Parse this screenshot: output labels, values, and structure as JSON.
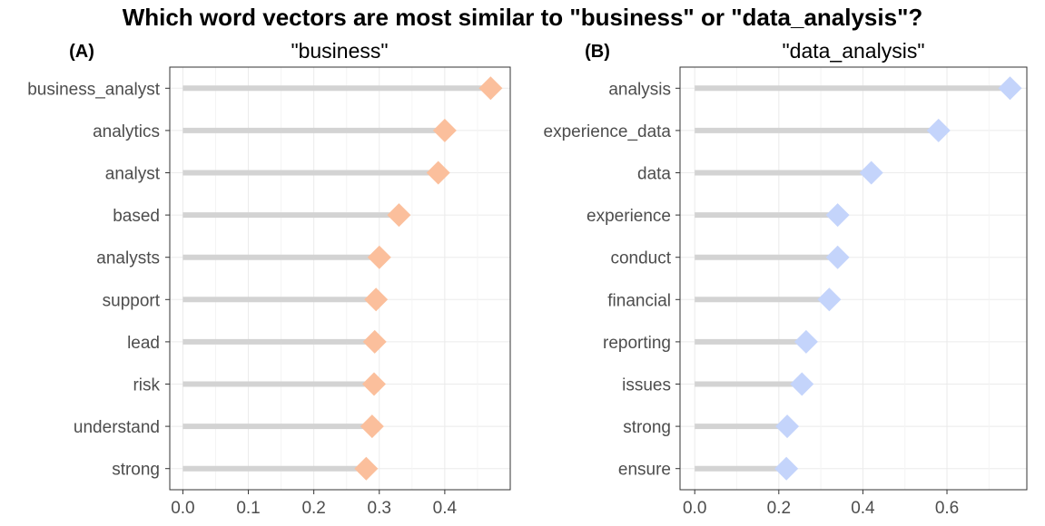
{
  "title": "Which word vectors are most similar to \"business\" or \"data_analysis\"?",
  "chart_data": [
    {
      "type": "lollipop",
      "tag": "(A)",
      "title": "\"business\"",
      "categories": [
        "business_analyst",
        "analytics",
        "analyst",
        "based",
        "analysts",
        "support",
        "lead",
        "risk",
        "understand",
        "strong"
      ],
      "values": [
        0.47,
        0.4,
        0.39,
        0.33,
        0.3,
        0.295,
        0.293,
        0.292,
        0.289,
        0.28
      ],
      "xlim": [
        -0.02,
        0.5
      ],
      "xticks": [
        0.0,
        0.1,
        0.2,
        0.3,
        0.4
      ],
      "tick_labels": [
        "0.0",
        "0.1",
        "0.2",
        "0.3",
        "0.4"
      ],
      "color": "#fbbf9c",
      "stem_color": "#d3d3d3",
      "grid": true
    },
    {
      "type": "lollipop",
      "tag": "(B)",
      "title": "\"data_analysis\"",
      "categories": [
        "analysis",
        "experience_data",
        "data",
        "experience",
        "conduct",
        "financial",
        "reporting",
        "issues",
        "strong",
        "ensure"
      ],
      "values": [
        0.75,
        0.58,
        0.42,
        0.34,
        0.34,
        0.32,
        0.265,
        0.255,
        0.22,
        0.218
      ],
      "xlim": [
        -0.035,
        0.79
      ],
      "xticks": [
        0.0,
        0.2,
        0.4,
        0.6
      ],
      "tick_labels": [
        "0.0",
        "0.2",
        "0.4",
        "0.6"
      ],
      "color": "#c4d4fb",
      "stem_color": "#d3d3d3",
      "grid": true
    }
  ]
}
